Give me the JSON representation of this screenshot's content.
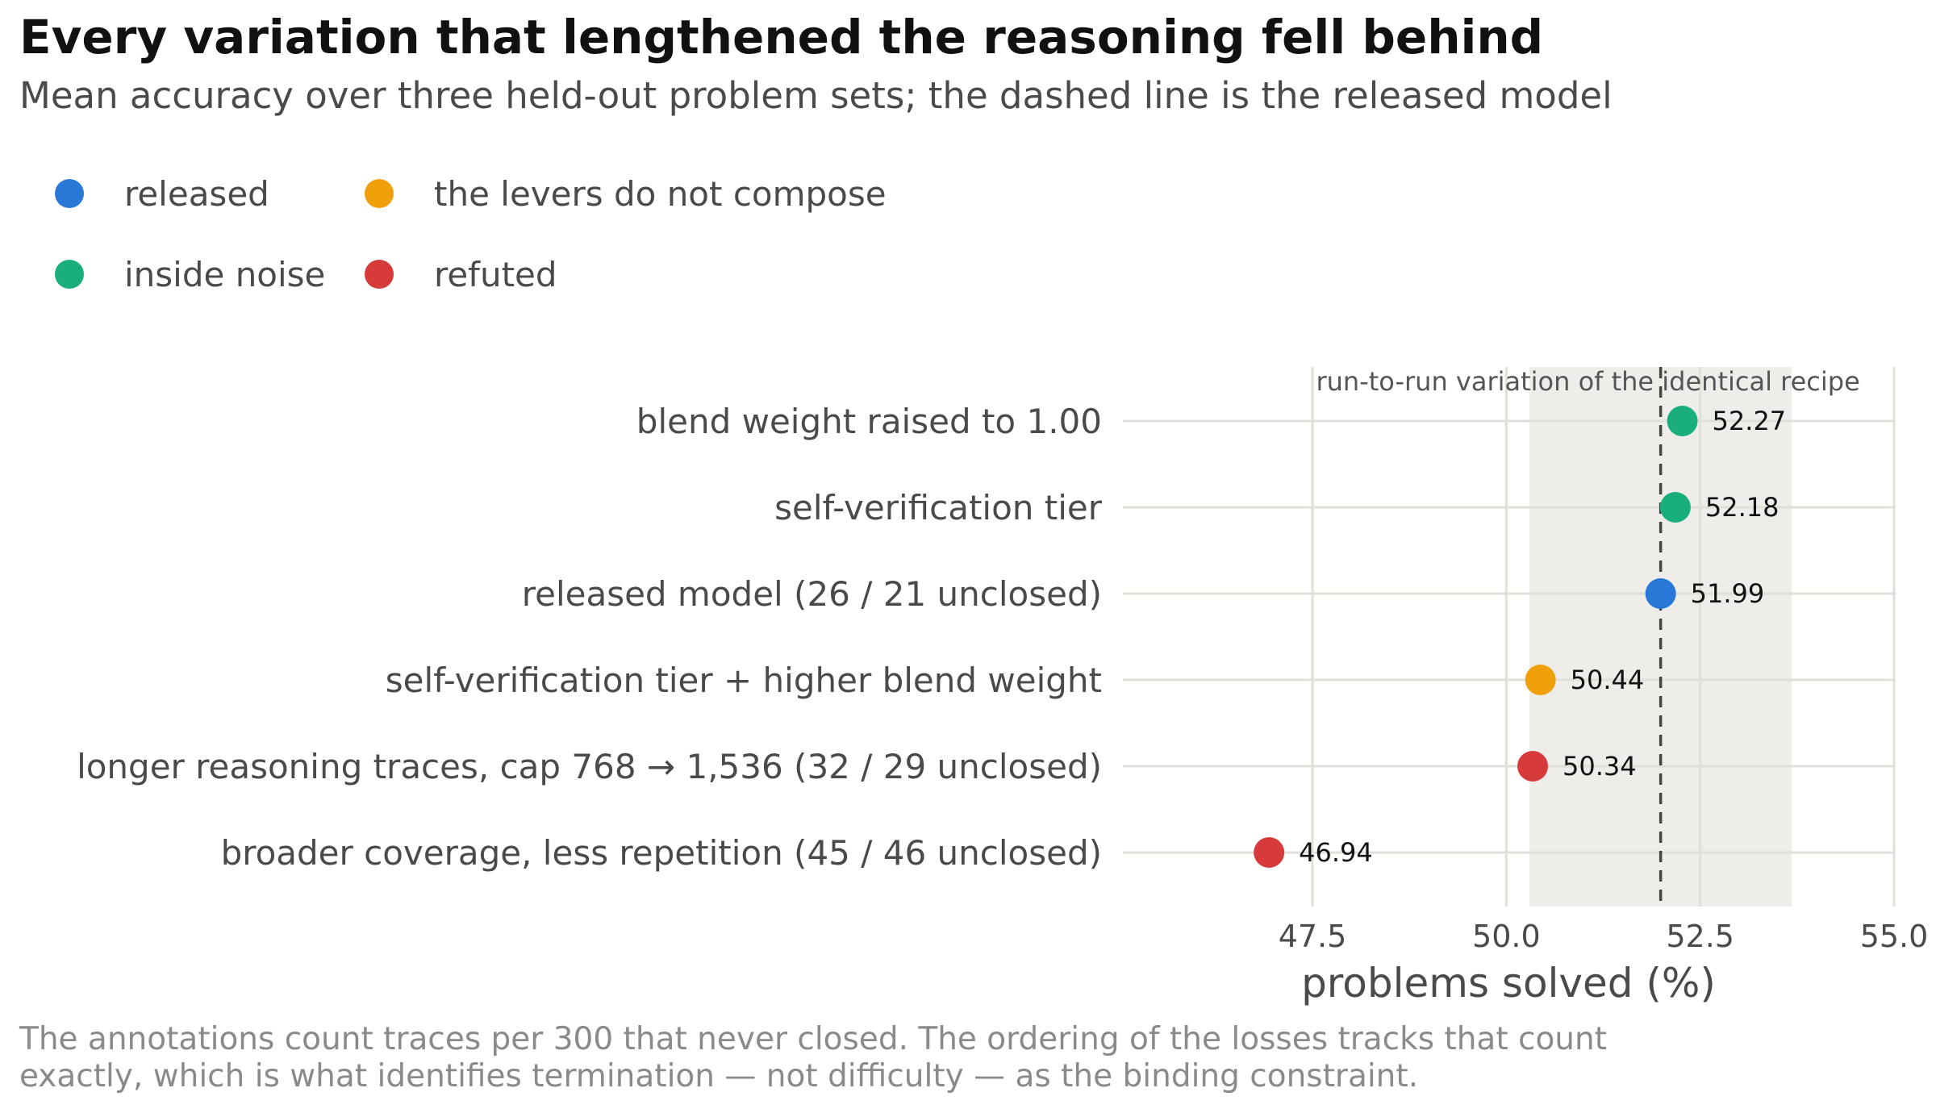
{
  "title": "Every variation that lengthened the reasoning fell behind",
  "subtitle": "Mean accuracy over three held-out problem sets; the dashed line is the released model",
  "legend": [
    {
      "label": "released",
      "color": "#2878d8"
    },
    {
      "label": "the levers do not compose",
      "color": "#f0a00a"
    },
    {
      "label": "inside noise",
      "color": "#1aae7a"
    },
    {
      "label": "refuted",
      "color": "#d63a3a"
    }
  ],
  "caption": [
    "The annotations count traces per 300 that never closed. The ordering of the losses tracks that count",
    "exactly, which is what identifies termination — not difficulty — as the binding constraint."
  ],
  "chart_data": {
    "type": "scatter",
    "xlabel": "problems solved (%)",
    "xlim": [
      45.5,
      55.0
    ],
    "xticks": [
      "47.5",
      "50.0",
      "52.5",
      "55.0"
    ],
    "xtick_values": [
      47.5,
      50.0,
      52.5,
      55.0
    ],
    "reference_line": 51.99,
    "band": {
      "from": 50.3,
      "to": 53.68,
      "label": "run-to-run variation of the identical recipe"
    },
    "grid": true,
    "legend_position": "top-left",
    "points": [
      {
        "label": "blend weight raised to 1.00",
        "value": 52.27,
        "value_label": "52.27",
        "category": "inside noise"
      },
      {
        "label": "self-verification tier",
        "value": 52.18,
        "value_label": "52.18",
        "category": "inside noise"
      },
      {
        "label": "released model   (26 / 21 unclosed)",
        "value": 51.99,
        "value_label": "51.99",
        "category": "released"
      },
      {
        "label": "self-verification tier + higher blend weight",
        "value": 50.44,
        "value_label": "50.44",
        "category": "the levers do not compose"
      },
      {
        "label": "longer reasoning traces, cap 768 → 1,536   (32 / 29 unclosed)",
        "value": 50.34,
        "value_label": "50.34",
        "category": "refuted"
      },
      {
        "label": "broader coverage, less repetition   (45 / 46 unclosed)",
        "value": 46.94,
        "value_label": "46.94",
        "category": "refuted"
      }
    ]
  }
}
